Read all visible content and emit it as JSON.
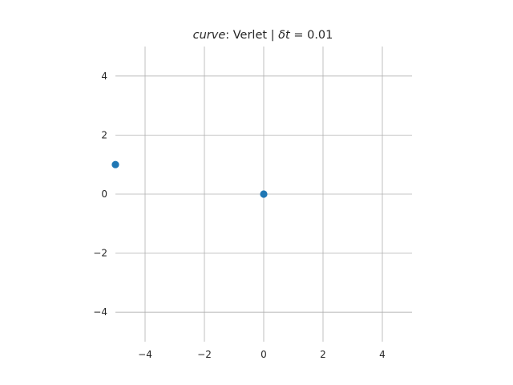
{
  "chart_data": {
    "type": "scatter",
    "title": "curve: Verlet | δt = 0.01",
    "title_parts": {
      "italic_label": "curve",
      "method": ": Verlet | ",
      "delta_symbol": "δt",
      "step": " = 0.01"
    },
    "xlabel": "",
    "ylabel": "",
    "xlim": [
      -5,
      5
    ],
    "ylim": [
      -5,
      5
    ],
    "x_ticks": [
      -4,
      -2,
      0,
      2,
      4
    ],
    "y_ticks": [
      -4,
      -2,
      0,
      2,
      4
    ],
    "x_tick_labels": [
      "−4",
      "−2",
      "0",
      "2",
      "4"
    ],
    "y_tick_labels": [
      "−4",
      "−2",
      "0",
      "2",
      "4"
    ],
    "grid": true,
    "legend": "none",
    "series": [
      {
        "x": [
          -5,
          0
        ],
        "y": [
          1,
          0
        ]
      }
    ],
    "colors": {
      "points": "#1f77b4",
      "grid": "#b0b0b0",
      "text": "#262626"
    }
  }
}
